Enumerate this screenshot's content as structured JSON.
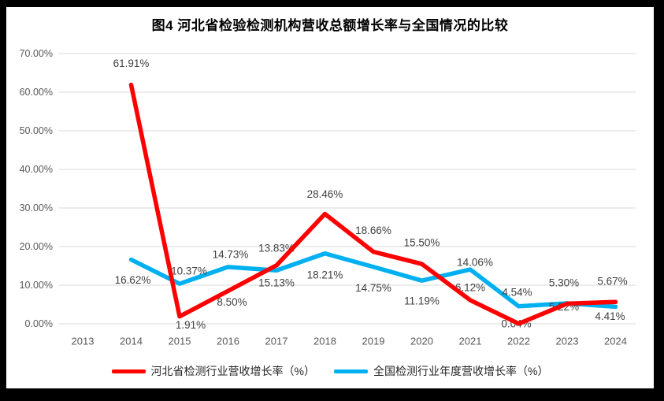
{
  "title": "图4 河北省检验检测机构营收总额增长率与全国情况的比较",
  "colors": {
    "frame": "#000000",
    "background": "#FFFFFF",
    "gridline": "#D9D9D9",
    "tick_text": "#595959",
    "label_text": "#404040",
    "title_text": "#000000",
    "hebei_red": "#FF0000",
    "national_blue": "#00B0F0"
  },
  "chart_data": {
    "type": "line",
    "title": "图4 河北省检验检测机构营收总额增长率与全国情况的比较",
    "xlabel": "",
    "ylabel": "",
    "x_categories": [
      "2013",
      "2014",
      "2015",
      "2016",
      "2017",
      "2018",
      "2019",
      "2020",
      "2021",
      "2022",
      "2023",
      "2024"
    ],
    "y_ticks": [
      "0.00%",
      "10.00%",
      "20.00%",
      "30.00%",
      "40.00%",
      "50.00%",
      "60.00%",
      "70.00%"
    ],
    "ylim": [
      0,
      70
    ],
    "grid": true,
    "legend_position": "bottom",
    "series": [
      {
        "name": "河北省检测行业营收增长率（%）",
        "color": "#FF0000",
        "points": [
          {
            "x": "2014",
            "v": 61.91,
            "label": "61.91%",
            "off": [
              0,
              -27
            ]
          },
          {
            "x": "2015",
            "v": 1.91,
            "label": "1.91%",
            "off": [
              14,
              11
            ]
          },
          {
            "x": "2016",
            "v": 8.5,
            "label": "8.50%",
            "off": [
              5,
              14
            ]
          },
          {
            "x": "2017",
            "v": 15.13,
            "label": "15.13%",
            "off": [
              0,
              22
            ]
          },
          {
            "x": "2018",
            "v": 28.46,
            "label": "28.46%",
            "off": [
              0,
              -25
            ]
          },
          {
            "x": "2019",
            "v": 18.66,
            "label": "18.66%",
            "off": [
              0,
              -27
            ]
          },
          {
            "x": "2020",
            "v": 15.5,
            "label": "15.50%",
            "off": [
              0,
              -27
            ]
          },
          {
            "x": "2021",
            "v": 6.12,
            "label": "6.12%",
            "off": [
              0,
              -16
            ]
          },
          {
            "x": "2022",
            "v": 0.04,
            "label": "0.04%",
            "off": [
              -3,
              0
            ]
          },
          {
            "x": "2023",
            "v": 5.22,
            "label": "5.22%",
            "off": [
              -4,
              4
            ]
          },
          {
            "x": "2024",
            "v": 5.67,
            "label": "5.67%",
            "off": [
              -4,
              -26
            ]
          }
        ]
      },
      {
        "name": "全国检测行业年度营收增长率（%）",
        "color": "#00B0F0",
        "points": [
          {
            "x": "2014",
            "v": 16.62,
            "label": "16.62%",
            "off": [
              2,
              26
            ]
          },
          {
            "x": "2015",
            "v": 10.37,
            "label": "10.37%",
            "off": [
              12,
              -16
            ]
          },
          {
            "x": "2016",
            "v": 14.73,
            "label": "14.73%",
            "off": [
              3,
              -16
            ]
          },
          {
            "x": "2017",
            "v": 13.83,
            "label": "13.83%",
            "off": [
              0,
              -28
            ]
          },
          {
            "x": "2018",
            "v": 18.21,
            "label": "18.21%",
            "off": [
              0,
              27
            ]
          },
          {
            "x": "2019",
            "v": 14.75,
            "label": "14.75%",
            "off": [
              0,
              27
            ]
          },
          {
            "x": "2020",
            "v": 11.19,
            "label": "11.19%",
            "off": [
              0,
              26
            ]
          },
          {
            "x": "2021",
            "v": 14.06,
            "label": "14.06%",
            "off": [
              6,
              -9
            ]
          },
          {
            "x": "2022",
            "v": 4.54,
            "label": "4.54%",
            "off": [
              -2,
              -18
            ]
          },
          {
            "x": "2023",
            "v": 5.3,
            "label": "5.30%",
            "off": [
              -4,
              -26
            ]
          },
          {
            "x": "2024",
            "v": 4.41,
            "label": "4.41%",
            "off": [
              -7,
              12
            ]
          }
        ]
      }
    ]
  },
  "legend": {
    "hebei_label": "河北省检测行业营收增长率（%）",
    "national_label": "全国检测行业年度营收增长率（%）"
  }
}
